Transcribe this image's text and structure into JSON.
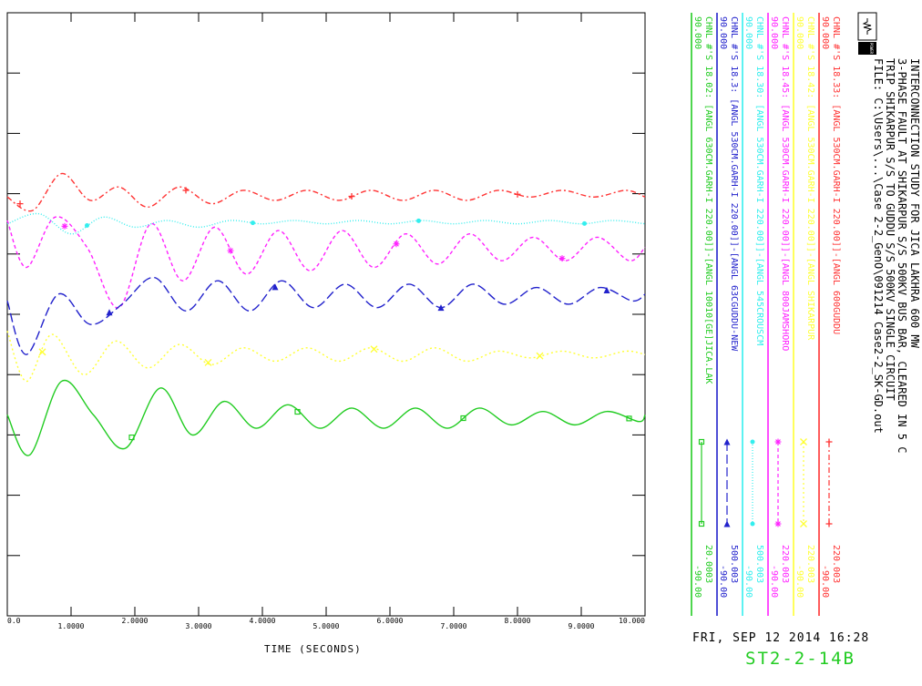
{
  "header": {
    "title": "INTERCONNECTION STUDY FOR JICA LAKHRA 600 MW",
    "line2": "3-PHASE FAULT AT SHIKARPUR S/S 500KV BUS BAR, CLEARED IN 5 C",
    "line3": "TRIP SHIKARPUR S/S TO GUDDU S/S 500KV SINGLE CIRCUIT",
    "line4": "FILE: C:\\Users\\...\\Case 2-2_GenO\\091214 Case2-2_SK-GD.out",
    "logo_text": "POWER PLANNERS INTERNATIONAL"
  },
  "footer": {
    "date": "FRI, SEP 12 2014   16:28",
    "id": "ST2-2-14B",
    "id_color": "#22cc22"
  },
  "chart_data": {
    "type": "line",
    "xlabel": "TIME (SECONDS)",
    "x_tick_labels": [
      "0.0",
      "1.0000",
      "2.0000",
      "3.0000",
      "4.0000",
      "5.0000",
      "6.0000",
      "7.0000",
      "8.0000",
      "9.0000",
      "10.000"
    ],
    "xlim": [
      0,
      10
    ],
    "ylim": [
      -90,
      90
    ],
    "grid": false,
    "legend_placement": "right, vertical strips",
    "series": [
      {
        "name": "CHNL #'S 18.33: [ANGL 530CM.GARH-I 220.00]]-[ANGL 600GUDDU",
        "color": "#ff3333",
        "ymax": "90.000",
        "ymin": "-90.00",
        "scale": "220.003",
        "marker": "+",
        "points": [
          [
            0,
            35
          ],
          [
            0.4,
            31
          ],
          [
            0.85,
            42
          ],
          [
            1.3,
            34
          ],
          [
            1.75,
            38
          ],
          [
            2.2,
            32
          ],
          [
            2.7,
            38
          ],
          [
            3.2,
            33
          ],
          [
            3.7,
            37
          ],
          [
            4.2,
            34
          ],
          [
            4.7,
            37
          ],
          [
            5.2,
            34
          ],
          [
            5.7,
            37
          ],
          [
            6.2,
            34
          ],
          [
            6.7,
            37
          ],
          [
            7.2,
            34
          ],
          [
            7.7,
            37
          ],
          [
            8.2,
            35
          ],
          [
            8.7,
            37
          ],
          [
            9.2,
            35
          ],
          [
            9.7,
            37
          ],
          [
            10,
            35
          ]
        ]
      },
      {
        "name": "CHNL #'S 18.42: [ANGL 530CM.GARH-I 220.00]]-[ANGL SHIKARPUR",
        "color": "#ffff33",
        "ymax": "90.000",
        "ymin": "-90.00",
        "scale": "220.003",
        "marker": "x",
        "points": [
          [
            0,
            -5
          ],
          [
            0.3,
            -20
          ],
          [
            0.7,
            -6
          ],
          [
            1.2,
            -18
          ],
          [
            1.7,
            -8
          ],
          [
            2.2,
            -16
          ],
          [
            2.7,
            -9
          ],
          [
            3.2,
            -15
          ],
          [
            3.7,
            -10
          ],
          [
            4.2,
            -14
          ],
          [
            4.7,
            -10
          ],
          [
            5.2,
            -14
          ],
          [
            5.7,
            -10
          ],
          [
            6.2,
            -14
          ],
          [
            6.7,
            -10
          ],
          [
            7.2,
            -14
          ],
          [
            7.7,
            -11
          ],
          [
            8.2,
            -13
          ],
          [
            8.7,
            -11
          ],
          [
            9.2,
            -13
          ],
          [
            9.7,
            -11
          ],
          [
            10,
            -12
          ]
        ]
      },
      {
        "name": "CHNL #'S 18.45: [ANGL 530CM.GARH-I 220.00]]-[ANGL 800JAMSHORO",
        "color": "#ff22ff",
        "ymax": "90.000",
        "ymin": "-90.00",
        "scale": "220.003",
        "marker": "*",
        "points": [
          [
            0,
            28
          ],
          [
            0.3,
            14
          ],
          [
            0.75,
            29
          ],
          [
            1.25,
            20
          ],
          [
            1.75,
            2
          ],
          [
            2.25,
            27
          ],
          [
            2.75,
            10
          ],
          [
            3.25,
            26
          ],
          [
            3.75,
            12
          ],
          [
            4.25,
            25
          ],
          [
            4.75,
            13
          ],
          [
            5.25,
            25
          ],
          [
            5.75,
            14
          ],
          [
            6.25,
            24
          ],
          [
            6.75,
            15
          ],
          [
            7.25,
            24
          ],
          [
            7.75,
            16
          ],
          [
            8.25,
            23
          ],
          [
            8.75,
            16
          ],
          [
            9.25,
            23
          ],
          [
            9.75,
            16
          ],
          [
            10,
            20
          ]
        ]
      },
      {
        "name": "CHNL #'S 18.30: [ANGL 530CM.GARH-I 220.00]]-[ANGL 545CROUSCM",
        "color": "#33eeee",
        "ymax": "90.000",
        "ymin": "-90.00",
        "scale": "500.003",
        "marker": "o",
        "points": [
          [
            0,
            27
          ],
          [
            0.5,
            30
          ],
          [
            1.0,
            24
          ],
          [
            1.5,
            29
          ],
          [
            2.0,
            26
          ],
          [
            2.5,
            28
          ],
          [
            3.0,
            26
          ],
          [
            3.5,
            28
          ],
          [
            4.0,
            27
          ],
          [
            4.5,
            28
          ],
          [
            5.0,
            27
          ],
          [
            5.5,
            28
          ],
          [
            6.0,
            27
          ],
          [
            6.5,
            28
          ],
          [
            7.0,
            27
          ],
          [
            7.5,
            28
          ],
          [
            8.0,
            27
          ],
          [
            8.5,
            28
          ],
          [
            9.0,
            27
          ],
          [
            9.5,
            28
          ],
          [
            10,
            27
          ]
        ]
      },
      {
        "name": "CHNL #'S 18.3: [ANGL 530CM.GARH-I 220.00]]-[ANGL 63CGUDDU-NEW",
        "color": "#2222cc",
        "ymax": "90.000",
        "ymin": "-90.00",
        "scale": "500.003",
        "marker": "triangle",
        "points": [
          [
            0,
            4
          ],
          [
            0.3,
            -12
          ],
          [
            0.8,
            6
          ],
          [
            1.3,
            -3
          ],
          [
            1.8,
            3
          ],
          [
            2.3,
            11
          ],
          [
            2.8,
            1
          ],
          [
            3.3,
            10
          ],
          [
            3.8,
            1
          ],
          [
            4.3,
            10
          ],
          [
            4.8,
            2
          ],
          [
            5.3,
            9
          ],
          [
            5.8,
            2
          ],
          [
            6.3,
            9
          ],
          [
            6.8,
            2
          ],
          [
            7.3,
            9
          ],
          [
            7.8,
            3
          ],
          [
            8.3,
            8
          ],
          [
            8.8,
            3
          ],
          [
            9.3,
            8
          ],
          [
            9.8,
            4
          ],
          [
            10,
            6
          ]
        ]
      },
      {
        "name": "CHNL #'S 18.02: [ANGL 630CM.GARH-I 220.00]]-[ANGL 10010[GE]JICA.LAK",
        "color": "#22cc22",
        "ymax": "90.000",
        "ymin": "-90.00",
        "scale": "20.0003",
        "marker": "square",
        "points": [
          [
            0,
            -30
          ],
          [
            0.35,
            -42
          ],
          [
            0.85,
            -20
          ],
          [
            1.35,
            -30
          ],
          [
            1.85,
            -40
          ],
          [
            2.4,
            -22
          ],
          [
            2.9,
            -36
          ],
          [
            3.4,
            -26
          ],
          [
            3.9,
            -34
          ],
          [
            4.4,
            -27
          ],
          [
            4.9,
            -34
          ],
          [
            5.4,
            -28
          ],
          [
            5.9,
            -34
          ],
          [
            6.4,
            -28
          ],
          [
            6.9,
            -34
          ],
          [
            7.4,
            -28
          ],
          [
            7.9,
            -33
          ],
          [
            8.4,
            -29
          ],
          [
            8.9,
            -33
          ],
          [
            9.4,
            -29
          ],
          [
            9.9,
            -32
          ],
          [
            10,
            -30
          ]
        ]
      }
    ]
  }
}
